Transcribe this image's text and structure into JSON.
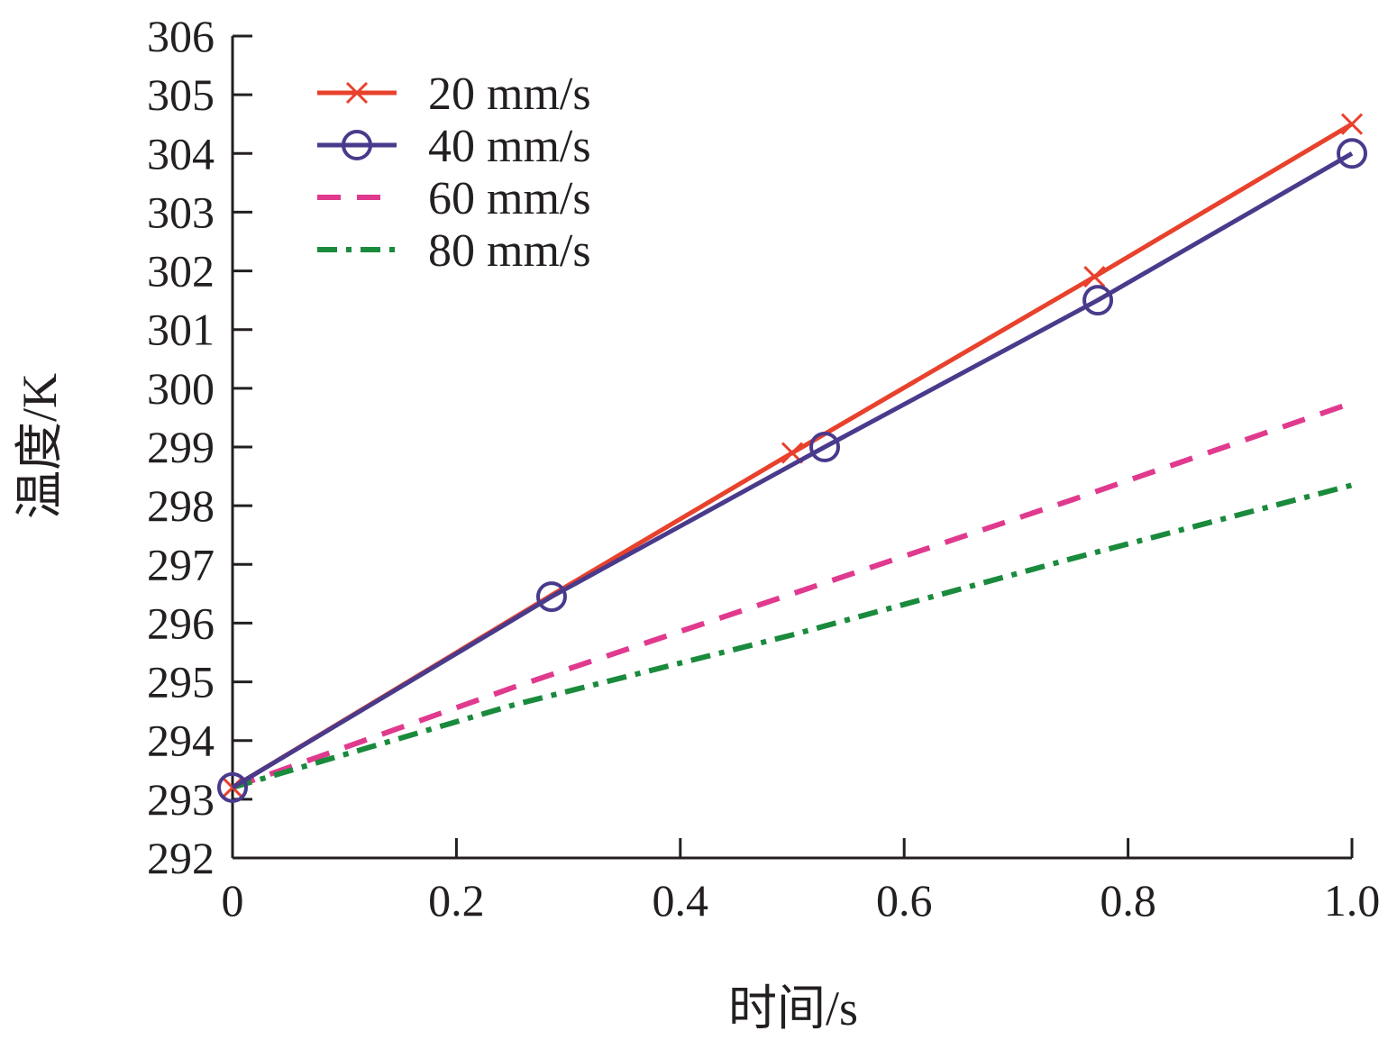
{
  "chart_data": {
    "type": "line",
    "title": "",
    "xlabel": "时间/s",
    "ylabel": "温度/K",
    "xlim": [
      0,
      1.0
    ],
    "ylim": [
      292,
      306
    ],
    "xticks": [
      0,
      0.2,
      0.4,
      0.6,
      0.8,
      1.0
    ],
    "xtick_labels": [
      "0",
      "0.2",
      "0.4",
      "0.6",
      "0.8",
      "1.0"
    ],
    "yticks": [
      292,
      293,
      294,
      295,
      296,
      297,
      298,
      299,
      300,
      301,
      302,
      303,
      304,
      305,
      306
    ],
    "ytick_labels": [
      "292",
      "293",
      "294",
      "295",
      "296",
      "297",
      "298",
      "299",
      "300",
      "301",
      "302",
      "303",
      "304",
      "305",
      "306"
    ],
    "grid": false,
    "legend_position": "top-left",
    "series": [
      {
        "name": "20 mm/s",
        "color": "#e8412c",
        "style": "solid",
        "marker": "x",
        "x": [
          0,
          0.287,
          0.5,
          0.77,
          1.0
        ],
        "y": [
          293.2,
          296.5,
          298.9,
          301.9,
          304.5
        ],
        "markers_x": [
          0,
          0.5,
          0.77,
          1.0
        ],
        "markers_y": [
          293.2,
          298.9,
          301.9,
          304.5
        ]
      },
      {
        "name": "40 mm/s",
        "color": "#4a3a8c",
        "style": "solid",
        "marker": "circle",
        "x": [
          0,
          0.285,
          0.529,
          0.773,
          1.0
        ],
        "y": [
          293.2,
          296.45,
          299.0,
          301.5,
          304.0
        ],
        "markers_x": [
          0,
          0.285,
          0.529,
          0.773,
          1.0
        ],
        "markers_y": [
          293.2,
          296.45,
          299.0,
          301.5,
          304.0
        ]
      },
      {
        "name": "60 mm/s",
        "color": "#e03a8e",
        "style": "dashed",
        "marker": "none",
        "x": [
          0,
          0.25,
          0.5,
          0.75,
          1.0
        ],
        "y": [
          293.2,
          294.9,
          296.5,
          298.1,
          299.75
        ]
      },
      {
        "name": "80 mm/s",
        "color": "#1a8a3c",
        "style": "dashdot",
        "marker": "none",
        "x": [
          0,
          0.25,
          0.5,
          0.75,
          1.0
        ],
        "y": [
          293.2,
          294.6,
          295.8,
          297.1,
          298.35
        ]
      }
    ]
  }
}
